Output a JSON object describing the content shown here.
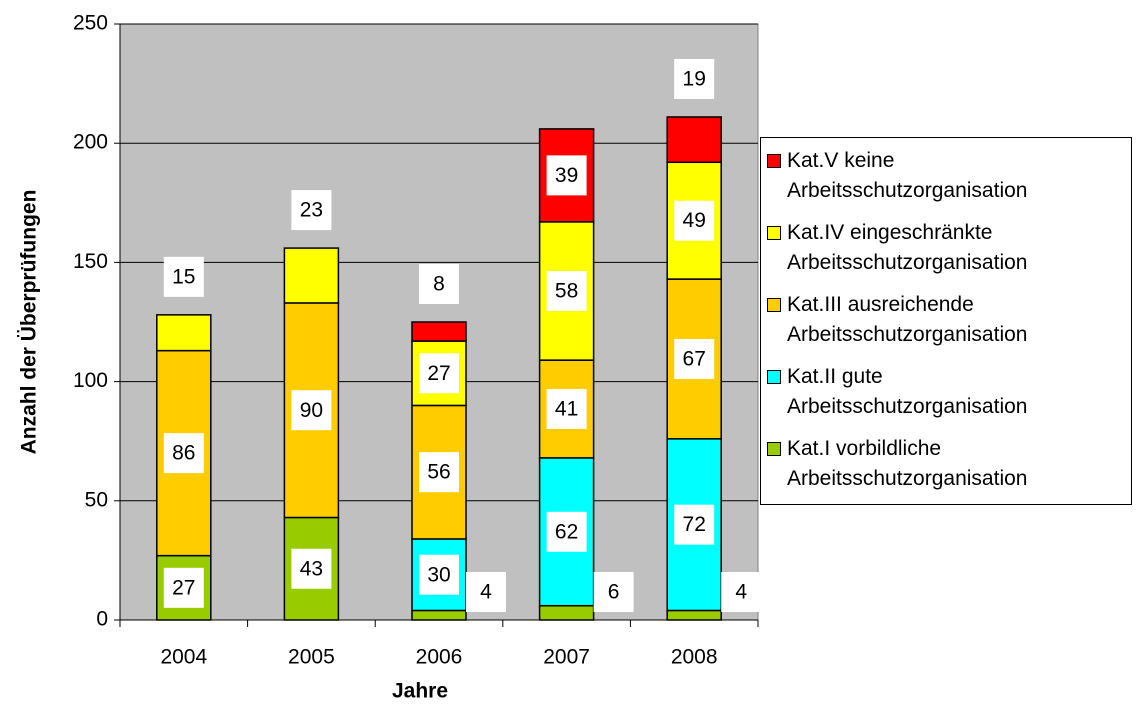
{
  "chart_data": {
    "type": "stacked_bar",
    "x_label": "Jahre",
    "y_label": "Anzahl der Überprüfungen",
    "categories": [
      "2004",
      "2005",
      "2006",
      "2007",
      "2008"
    ],
    "series": [
      {
        "name": "Kat.I vorbildliche Arbeitsschutzorganisation",
        "color": "#99cc00",
        "values": [
          27,
          43,
          4,
          6,
          4
        ]
      },
      {
        "name": "Kat.II gute Arbeitsschutzorganisation",
        "color": "#00ffff",
        "values": [
          null,
          null,
          30,
          62,
          72
        ]
      },
      {
        "name": "Kat.III ausreichende Arbeitsschutzorganisation",
        "color": "#ffcc00",
        "values": [
          86,
          90,
          56,
          41,
          67
        ]
      },
      {
        "name": "Kat.IV eingeschränkte Arbeitsschutzorganisation",
        "color": "#ffff00",
        "values": [
          15,
          23,
          27,
          58,
          49
        ]
      },
      {
        "name": "Kat.V keine Arbeitsschutzorganisation",
        "color": "#ff0000",
        "values": [
          null,
          null,
          8,
          39,
          19
        ]
      }
    ],
    "ylim": [
      0,
      250
    ],
    "yticks": [
      0,
      50,
      100,
      150,
      200,
      250
    ],
    "grid": true,
    "legend": "right"
  }
}
